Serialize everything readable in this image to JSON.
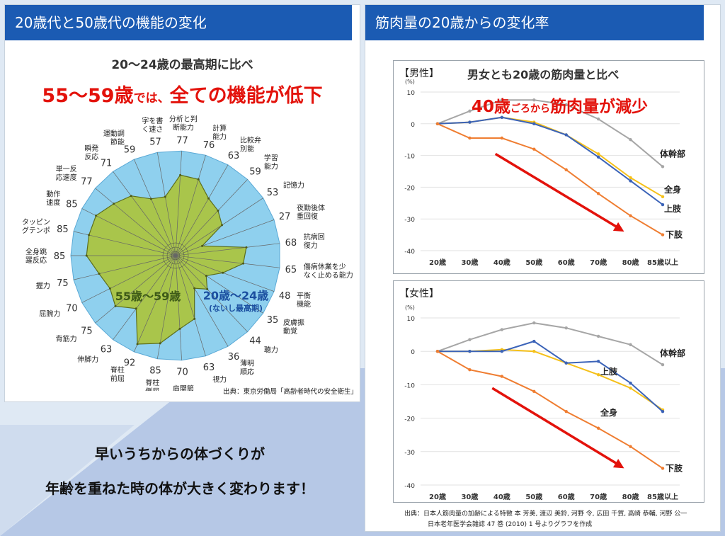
{
  "left_panel": {
    "header": "20歳代と50歳代の機能の変化",
    "subtitle": "20～24歳の最高期に比べ",
    "headline_a": "55～59歳",
    "headline_b": "では、",
    "headline_c": "全ての機能が低下",
    "source": "出典：東京労働局「高齢者時代の安全衛生」"
  },
  "right_panel": {
    "header": "筋肉量の20歳からの変化率",
    "source_line1": "出典：日本人筋肉量の加齢による特徴  本 芳美, 渡辺 美鈴, 河野 令, 広田 千賀, 高崎 恭輔, 河野 公一",
    "source_line2": "日本老年医学会雑誌 47 巻 (2010) 1 号よりグラフを作成"
  },
  "message": {
    "line1": "早いうちからの体づくりが",
    "line2": "年齢を重ねた時の体が大きく変わります！"
  },
  "colors": {
    "header_blue": "#1b5bb3",
    "radar_fill_blue": "#8fd0ee",
    "radar_fill_green": "#a9c54b",
    "trunk": "#a6a6a6",
    "whole": "#f5c019",
    "upper": "#3b63b8",
    "lower": "#ef7d31",
    "arrow": "#e3120b"
  },
  "chart_data": [
    {
      "type": "radar",
      "series_labels": {
        "inner": "55歳～59歳",
        "outer": "20歳～24歳",
        "outer_note": "(ないし最高期)"
      },
      "outer_value": 100,
      "axes": [
        {
          "label": "字を書く速さ",
          "value": 57
        },
        {
          "label": "分析と判断能力",
          "value": 77
        },
        {
          "label": "計算能力",
          "value": 76
        },
        {
          "label": "比較弁別能",
          "value": 63
        },
        {
          "label": "学習能力",
          "value": 59
        },
        {
          "label": "記憶力",
          "value": 53
        },
        {
          "label": "夜勤後体重回復",
          "value": 27
        },
        {
          "label": "抗病回復力",
          "value": 68
        },
        {
          "label": "傷病休業を少なく止める能力",
          "value": 65
        },
        {
          "label": "平衡機能",
          "value": 48
        },
        {
          "label": "皮膚振動覚",
          "value": 35
        },
        {
          "label": "聴力",
          "value": 44
        },
        {
          "label": "薄明順応",
          "value": 36
        },
        {
          "label": "視力",
          "value": 63
        },
        {
          "label": "肩関節",
          "value": 70
        },
        {
          "label": "脊柱側屈",
          "value": 85
        },
        {
          "label": "脊柱前屈",
          "value": 92
        },
        {
          "label": "伸脚力",
          "value": 63
        },
        {
          "label": "背筋力",
          "value": 75
        },
        {
          "label": "屈腕力",
          "value": 70
        },
        {
          "label": "握力",
          "value": 75
        },
        {
          "label": "全身跳躍反応",
          "value": 85
        },
        {
          "label": "タッピングテンポ",
          "value": 85
        },
        {
          "label": "動作速度",
          "value": 85
        },
        {
          "label": "単一反応速度",
          "value": 77
        },
        {
          "label": "瞬発反応",
          "value": 71
        },
        {
          "label": "運動調節能",
          "value": 59
        }
      ]
    },
    {
      "type": "line",
      "panel_label": "【男性】",
      "title": "男女とも20歳の筋肉量と比べ",
      "callout_a": "40歳",
      "callout_b": "ごろから",
      "callout_c": "筋肉量が減少",
      "ylabel": "(%)",
      "ylim": [
        -40,
        10
      ],
      "yticks": [
        "10",
        "0",
        "-10",
        "-20",
        "-30",
        "-40"
      ],
      "categories": [
        "20歳",
        "30歳",
        "40歳",
        "50歳",
        "60歳",
        "70歳",
        "80歳",
        "85歳以上"
      ],
      "series": [
        {
          "name": "体幹部",
          "values": [
            0,
            4,
            7.5,
            7.5,
            6,
            1.5,
            -5,
            -13.5
          ]
        },
        {
          "name": "全身",
          "values": [
            0,
            0.5,
            2,
            0.5,
            -3.5,
            -9.5,
            -17,
            -23
          ]
        },
        {
          "name": "上肢",
          "values": [
            0,
            0.5,
            2,
            0,
            -3.5,
            -10.5,
            -18,
            -25.5
          ]
        },
        {
          "name": "下肢",
          "values": [
            0,
            -4.5,
            -4.5,
            -8,
            -14.5,
            -22,
            -29,
            -35
          ]
        }
      ]
    },
    {
      "type": "line",
      "panel_label": "【女性】",
      "ylabel": "(%)",
      "ylim": [
        -40,
        10
      ],
      "yticks": [
        "10",
        "0",
        "-10",
        "-20",
        "-30",
        "-40"
      ],
      "categories": [
        "20歳",
        "30歳",
        "40歳",
        "50歳",
        "60歳",
        "70歳",
        "80歳",
        "85歳以上"
      ],
      "series": [
        {
          "name": "体幹部",
          "values": [
            0,
            3.5,
            6.5,
            8.5,
            7,
            4.5,
            2,
            -4
          ]
        },
        {
          "name": "全身",
          "values": [
            0,
            0,
            0.5,
            0,
            -3.5,
            -7,
            -11,
            -17.5
          ]
        },
        {
          "name": "上肢",
          "values": [
            0,
            0,
            0,
            3,
            -3.5,
            -3,
            -9.5,
            -18
          ]
        },
        {
          "name": "下肢",
          "values": [
            0,
            -5.5,
            -7.5,
            -12,
            -18,
            -23,
            -28.5,
            -35
          ]
        }
      ]
    }
  ]
}
